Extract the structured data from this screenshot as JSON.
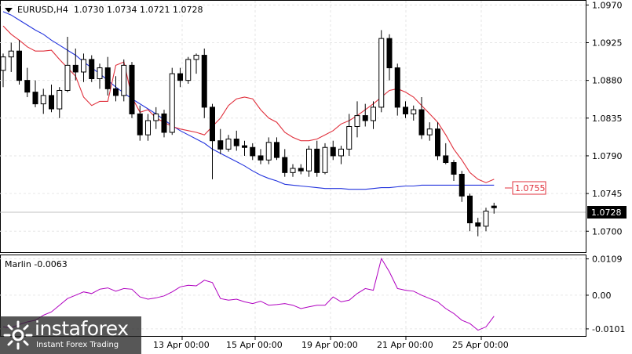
{
  "header": {
    "symbol": "EURUSD,H4",
    "ohlc": "1.0730 1.0734 1.0721 1.0728"
  },
  "indicator_label": "Marlin -0.0063",
  "price_tags": {
    "ma_value": "1.0755",
    "current_price": "1.0728"
  },
  "watermark": {
    "brand": "instaforex",
    "slogan": "Instant Forex Trading"
  },
  "colors": {
    "background": "#ffffff",
    "grid": "#e6e6e6",
    "axis": "#000000",
    "candle": "#000000",
    "red_ma": "#e0303c",
    "blue_ma": "#2233dd",
    "oscillator": "#b000c0",
    "price_line": "#c0c0c0"
  },
  "chart_data": [
    {
      "type": "candlestick",
      "ylim": [
        1.0675,
        1.0975
      ],
      "y_ticks": [
        "1.0970",
        "1.0925",
        "1.0880",
        "1.0835",
        "1.0790",
        "1.0745",
        "1.0700"
      ],
      "x_ticks": [
        "13 Apr 00:00",
        "15 Apr 00:00",
        "19 Apr 00:00",
        "21 Apr 00:00",
        "25 Apr 00:00"
      ],
      "candles": [
        [
          1.0892,
          1.0912,
          1.0872,
          1.0908
        ],
        [
          1.0908,
          1.0925,
          1.089,
          1.0915
        ],
        [
          1.0915,
          1.0928,
          1.0875,
          1.088
        ],
        [
          1.088,
          1.0895,
          1.086,
          1.0866
        ],
        [
          1.0866,
          1.088,
          1.0848,
          1.0852
        ],
        [
          1.0852,
          1.087,
          1.084,
          1.0862
        ],
        [
          1.0862,
          1.0875,
          1.0842,
          1.0846
        ],
        [
          1.0846,
          1.0872,
          1.0835,
          1.0868
        ],
        [
          1.0868,
          1.0932,
          1.0866,
          1.0898
        ],
        [
          1.0898,
          1.0918,
          1.088,
          1.089
        ],
        [
          1.089,
          1.0912,
          1.0878,
          1.0905
        ],
        [
          1.0905,
          1.091,
          1.0878,
          1.0882
        ],
        [
          1.0882,
          1.09,
          1.087,
          1.0895
        ],
        [
          1.0895,
          1.0908,
          1.0862,
          1.087
        ],
        [
          1.087,
          1.0885,
          1.0855,
          1.0862
        ],
        [
          1.0862,
          1.0905,
          1.0855,
          1.0898
        ],
        [
          1.0898,
          1.0902,
          1.0835,
          1.084
        ],
        [
          1.084,
          1.085,
          1.0808,
          1.0815
        ],
        [
          1.0815,
          1.084,
          1.0808,
          1.0832
        ],
        [
          1.0832,
          1.0848,
          1.0822,
          1.084
        ],
        [
          1.084,
          1.0845,
          1.0812,
          1.0818
        ],
        [
          1.0818,
          1.0895,
          1.0815,
          1.0888
        ],
        [
          1.0888,
          1.0895,
          1.0872,
          1.088
        ],
        [
          1.088,
          1.0908,
          1.0876,
          1.0905
        ],
        [
          1.0905,
          1.0912,
          1.0888,
          1.091
        ],
        [
          1.091,
          1.0918,
          1.0835,
          1.0848
        ],
        [
          1.0848,
          1.0852,
          1.0762,
          1.0808
        ],
        [
          1.0808,
          1.0822,
          1.0792,
          1.0798
        ],
        [
          1.0798,
          1.0815,
          1.0795,
          1.081
        ],
        [
          1.081,
          1.082,
          1.0796,
          1.0802
        ],
        [
          1.0802,
          1.0808,
          1.079,
          1.08
        ],
        [
          1.08,
          1.0805,
          1.0785,
          1.079
        ],
        [
          1.079,
          1.0798,
          1.078,
          1.0785
        ],
        [
          1.0785,
          1.0812,
          1.078,
          1.0806
        ],
        [
          1.0806,
          1.0812,
          1.0785,
          1.0788
        ],
        [
          1.0788,
          1.0798,
          1.0765,
          1.077
        ],
        [
          1.077,
          1.078,
          1.0765,
          1.0775
        ],
        [
          1.0775,
          1.078,
          1.0768,
          1.0772
        ],
        [
          1.0772,
          1.0802,
          1.0765,
          1.0798
        ],
        [
          1.0798,
          1.0808,
          1.0765,
          1.077
        ],
        [
          1.077,
          1.0805,
          1.0768,
          1.08
        ],
        [
          1.08,
          1.0808,
          1.0785,
          1.079
        ],
        [
          1.079,
          1.0802,
          1.078,
          1.0798
        ],
        [
          1.0798,
          1.084,
          1.079,
          1.0825
        ],
        [
          1.0825,
          1.0855,
          1.0812,
          1.0838
        ],
        [
          1.0838,
          1.0852,
          1.0825,
          1.0832
        ],
        [
          1.0832,
          1.0855,
          1.0822,
          1.0848
        ],
        [
          1.0848,
          1.094,
          1.0842,
          1.093
        ],
        [
          1.093,
          1.0935,
          1.088,
          1.0895
        ],
        [
          1.0895,
          1.09,
          1.0838,
          1.0848
        ],
        [
          1.0848,
          1.0855,
          1.0835,
          1.084
        ],
        [
          1.084,
          1.085,
          1.0832,
          1.0845
        ],
        [
          1.0845,
          1.086,
          1.081,
          1.0815
        ],
        [
          1.0815,
          1.083,
          1.0808,
          1.0822
        ],
        [
          1.0822,
          1.083,
          1.0785,
          1.079
        ],
        [
          1.079,
          1.0805,
          1.078,
          1.0782
        ],
        [
          1.0782,
          1.0785,
          1.076,
          1.0768
        ],
        [
          1.0768,
          1.0772,
          1.0735,
          1.0742
        ],
        [
          1.0742,
          1.0745,
          1.07,
          1.071
        ],
        [
          1.071,
          1.0716,
          1.0694,
          1.0706
        ],
        [
          1.0706,
          1.0728,
          1.07,
          1.0724
        ],
        [
          1.073,
          1.0734,
          1.0721,
          1.0728
        ]
      ],
      "series": [
        {
          "values": [
            1.0945,
            1.0935,
            1.0928,
            1.092,
            1.0915,
            1.0915,
            1.0916,
            1.0905,
            1.0895,
            1.0885,
            1.086,
            1.085,
            1.0855,
            1.0855,
            1.0898,
            1.0902,
            1.086,
            1.0842,
            1.0845,
            1.0835,
            1.083,
            1.0825,
            1.0822,
            1.082,
            1.0818,
            1.0815,
            1.0825,
            1.0835,
            1.085,
            1.0858,
            1.086,
            1.0858,
            1.0845,
            1.0835,
            1.083,
            1.0818,
            1.0812,
            1.0808,
            1.0808,
            1.081,
            1.0815,
            1.082,
            1.0828,
            1.0832,
            1.0838,
            1.0845,
            1.0852,
            1.086,
            1.0868,
            1.087,
            1.0866,
            1.086,
            1.085,
            1.084,
            1.083,
            1.0815,
            1.0798,
            1.0785,
            1.077,
            1.0762,
            1.0758,
            1.0762
          ]
        },
        {
          "values": [
            1.0962,
            1.0958,
            1.0952,
            1.0946,
            1.094,
            1.0935,
            1.0928,
            1.0922,
            1.0916,
            1.091,
            1.0902,
            1.0895,
            1.0888,
            1.088,
            1.0872,
            1.0865,
            1.0858,
            1.0852,
            1.0846,
            1.084,
            1.0833,
            1.0826,
            1.082,
            1.0815,
            1.081,
            1.0805,
            1.0798,
            1.0793,
            1.0788,
            1.0783,
            1.0778,
            1.0772,
            1.0767,
            1.0763,
            1.076,
            1.0756,
            1.0755,
            1.0754,
            1.0753,
            1.0752,
            1.0751,
            1.0751,
            1.0751,
            1.075,
            1.075,
            1.075,
            1.0751,
            1.0752,
            1.0752,
            1.0753,
            1.0754,
            1.0754,
            1.0755,
            1.0755,
            1.0755,
            1.0755,
            1.0755,
            1.0755,
            1.0755,
            1.0755,
            1.0755,
            1.0755
          ]
        }
      ]
    },
    {
      "type": "line",
      "title": "Marlin -0.0063",
      "ylim": [
        -0.012,
        0.0115
      ],
      "y_ticks": [
        "0.0109",
        "0.00",
        "-0.0101"
      ],
      "series": [
        {
          "values": [
            -0.0095,
            -0.0098,
            -0.0088,
            -0.008,
            -0.0075,
            -0.006,
            -0.005,
            -0.003,
            -0.001,
            0.0,
            0.001,
            0.0005,
            0.0018,
            0.0022,
            0.0012,
            0.002,
            0.0018,
            -0.0005,
            -0.0012,
            -0.0008,
            -0.0002,
            0.001,
            0.0025,
            0.003,
            0.0028,
            0.0045,
            0.0038,
            -0.001,
            -0.0015,
            -0.0012,
            -0.002,
            -0.0025,
            -0.0018,
            -0.003,
            -0.0028,
            -0.0025,
            -0.003,
            -0.004,
            -0.0035,
            -0.003,
            -0.003,
            -0.0005,
            -0.002,
            -0.0015,
            0.0005,
            0.002,
            0.0015,
            0.011,
            0.007,
            0.002,
            0.0015,
            0.0012,
            0.0,
            -0.001,
            -0.002,
            -0.004,
            -0.0055,
            -0.0075,
            -0.0085,
            -0.0105,
            -0.0095,
            -0.0063
          ]
        }
      ]
    }
  ]
}
